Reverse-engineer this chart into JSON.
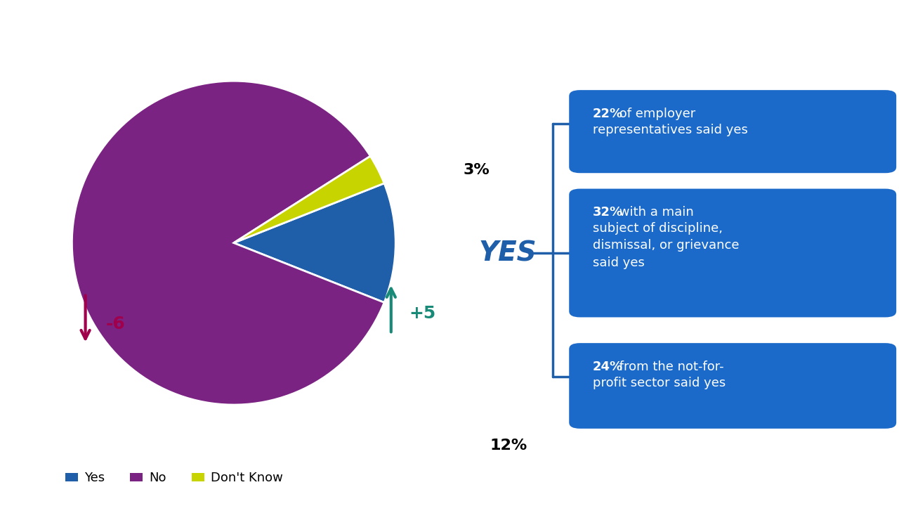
{
  "pie_values": [
    12,
    85,
    3
  ],
  "pie_labels": [
    "Yes",
    "No",
    "Don't Know"
  ],
  "pie_colors": [
    "#1F5EA8",
    "#7B2382",
    "#C8D400"
  ],
  "yes_label": "YES",
  "yes_color": "#1F5EA8",
  "yes_change": "+5",
  "yes_arrow_color": "#1A8A78",
  "no_change": "-6",
  "no_arrow_color": "#A0004B",
  "background_color": "#FFFFFF",
  "info_boxes": [
    {
      "pct_text": "22%",
      "desc_text": " of employer\nrepresentatives said yes",
      "bg_color": "#1B6AC9",
      "text_color": "#FFFFFF"
    },
    {
      "pct_text": "32%",
      "desc_text": " with a main\nsubject of discipline,\ndismissal, or grievance\nsaid yes",
      "bg_color": "#1B6AC9",
      "text_color": "#FFFFFF"
    },
    {
      "pct_text": "24%",
      "desc_text": " from the not-for-\nprofit sector said yes",
      "bg_color": "#1B6AC9",
      "text_color": "#FFFFFF"
    }
  ],
  "legend_labels": [
    "Yes",
    "No",
    "Don't Know"
  ],
  "legend_colors": [
    "#1F5EA8",
    "#7B2382",
    "#C8D400"
  ]
}
